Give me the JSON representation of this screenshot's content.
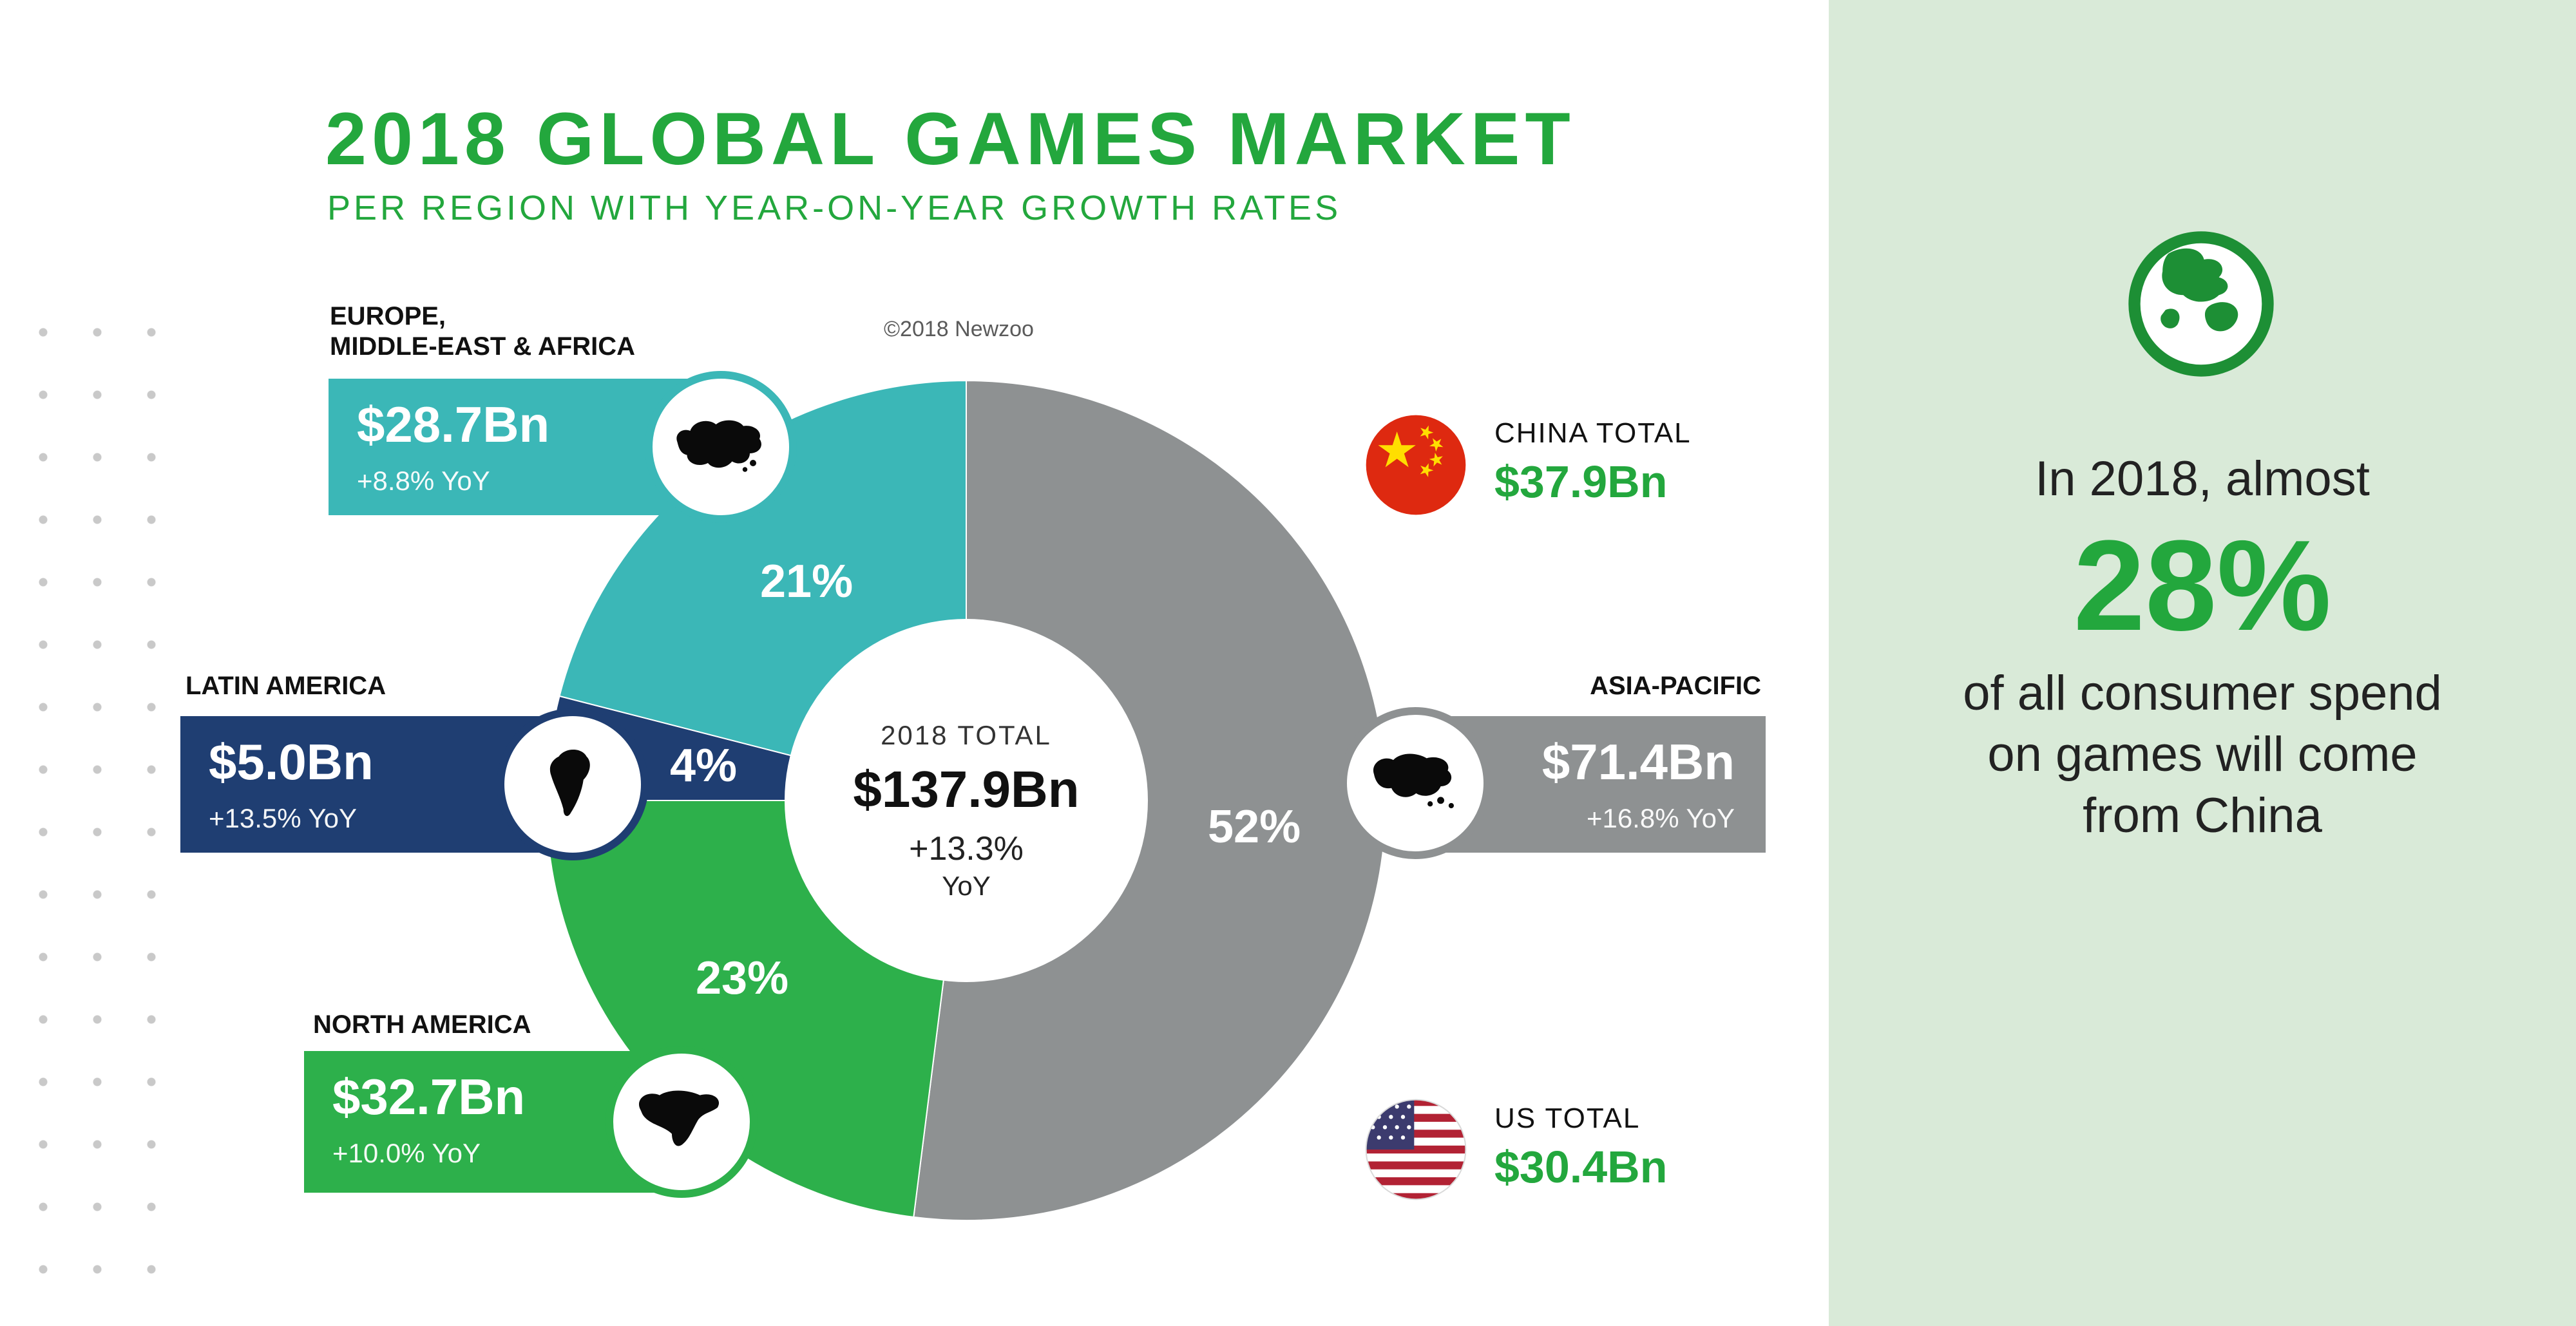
{
  "header": {
    "title": "2018 GLOBAL GAMES MARKET",
    "subtitle": "PER REGION WITH YEAR-ON-YEAR GROWTH RATES",
    "copyright": "©2018 Newzoo"
  },
  "chart_data": {
    "type": "pie",
    "title": "2018 Global Games Market per region with year-on-year growth rates",
    "categories": [
      "Asia-Pacific",
      "North America",
      "Latin America",
      "Europe, Middle-East & Africa"
    ],
    "values": [
      52,
      23,
      4,
      21
    ],
    "value_labels": [
      "52%",
      "23%",
      "4%",
      "21%"
    ],
    "amounts": [
      "$71.4Bn",
      "$32.7Bn",
      "$5.0Bn",
      "$28.7Bn"
    ],
    "amounts_usd_bn": [
      71.4,
      32.7,
      5.0,
      28.7
    ],
    "yoy": [
      "+16.8% YoY",
      "+10.0% YoY",
      "+13.5% YoY",
      "+8.8% YoY"
    ],
    "colors": [
      "#8e9192",
      "#2db04b",
      "#1f3e72",
      "#3bb7b7"
    ],
    "center": {
      "label": "2018 TOTAL",
      "total": "$137.9Bn",
      "growth": "+13.3%",
      "growth_suffix": "YoY"
    }
  },
  "region_cards": {
    "emea": {
      "header_line1": "EUROPE,",
      "header_line2": "MIDDLE-EAST & AFRICA"
    },
    "latam": {
      "header": "LATIN AMERICA"
    },
    "na": {
      "header": "NORTH AMERICA"
    },
    "apac": {
      "header": "ASIA-PACIFIC"
    }
  },
  "callouts": {
    "china": {
      "label": "CHINA TOTAL",
      "value": "$37.9Bn"
    },
    "us": {
      "label": "US TOTAL",
      "value": "$30.4Bn"
    }
  },
  "side_panel": {
    "intro": "In 2018, almost",
    "stat": "28%",
    "body_lines": [
      "of all consumer spend",
      "on games will come",
      "from China"
    ]
  },
  "colors": {
    "brand_green": "#23a73d",
    "slice_green": "#2db04b",
    "teal": "#3bb7b7",
    "navy": "#1f3e72",
    "gray": "#8e9192",
    "panel_bg": "#d9ead8"
  }
}
